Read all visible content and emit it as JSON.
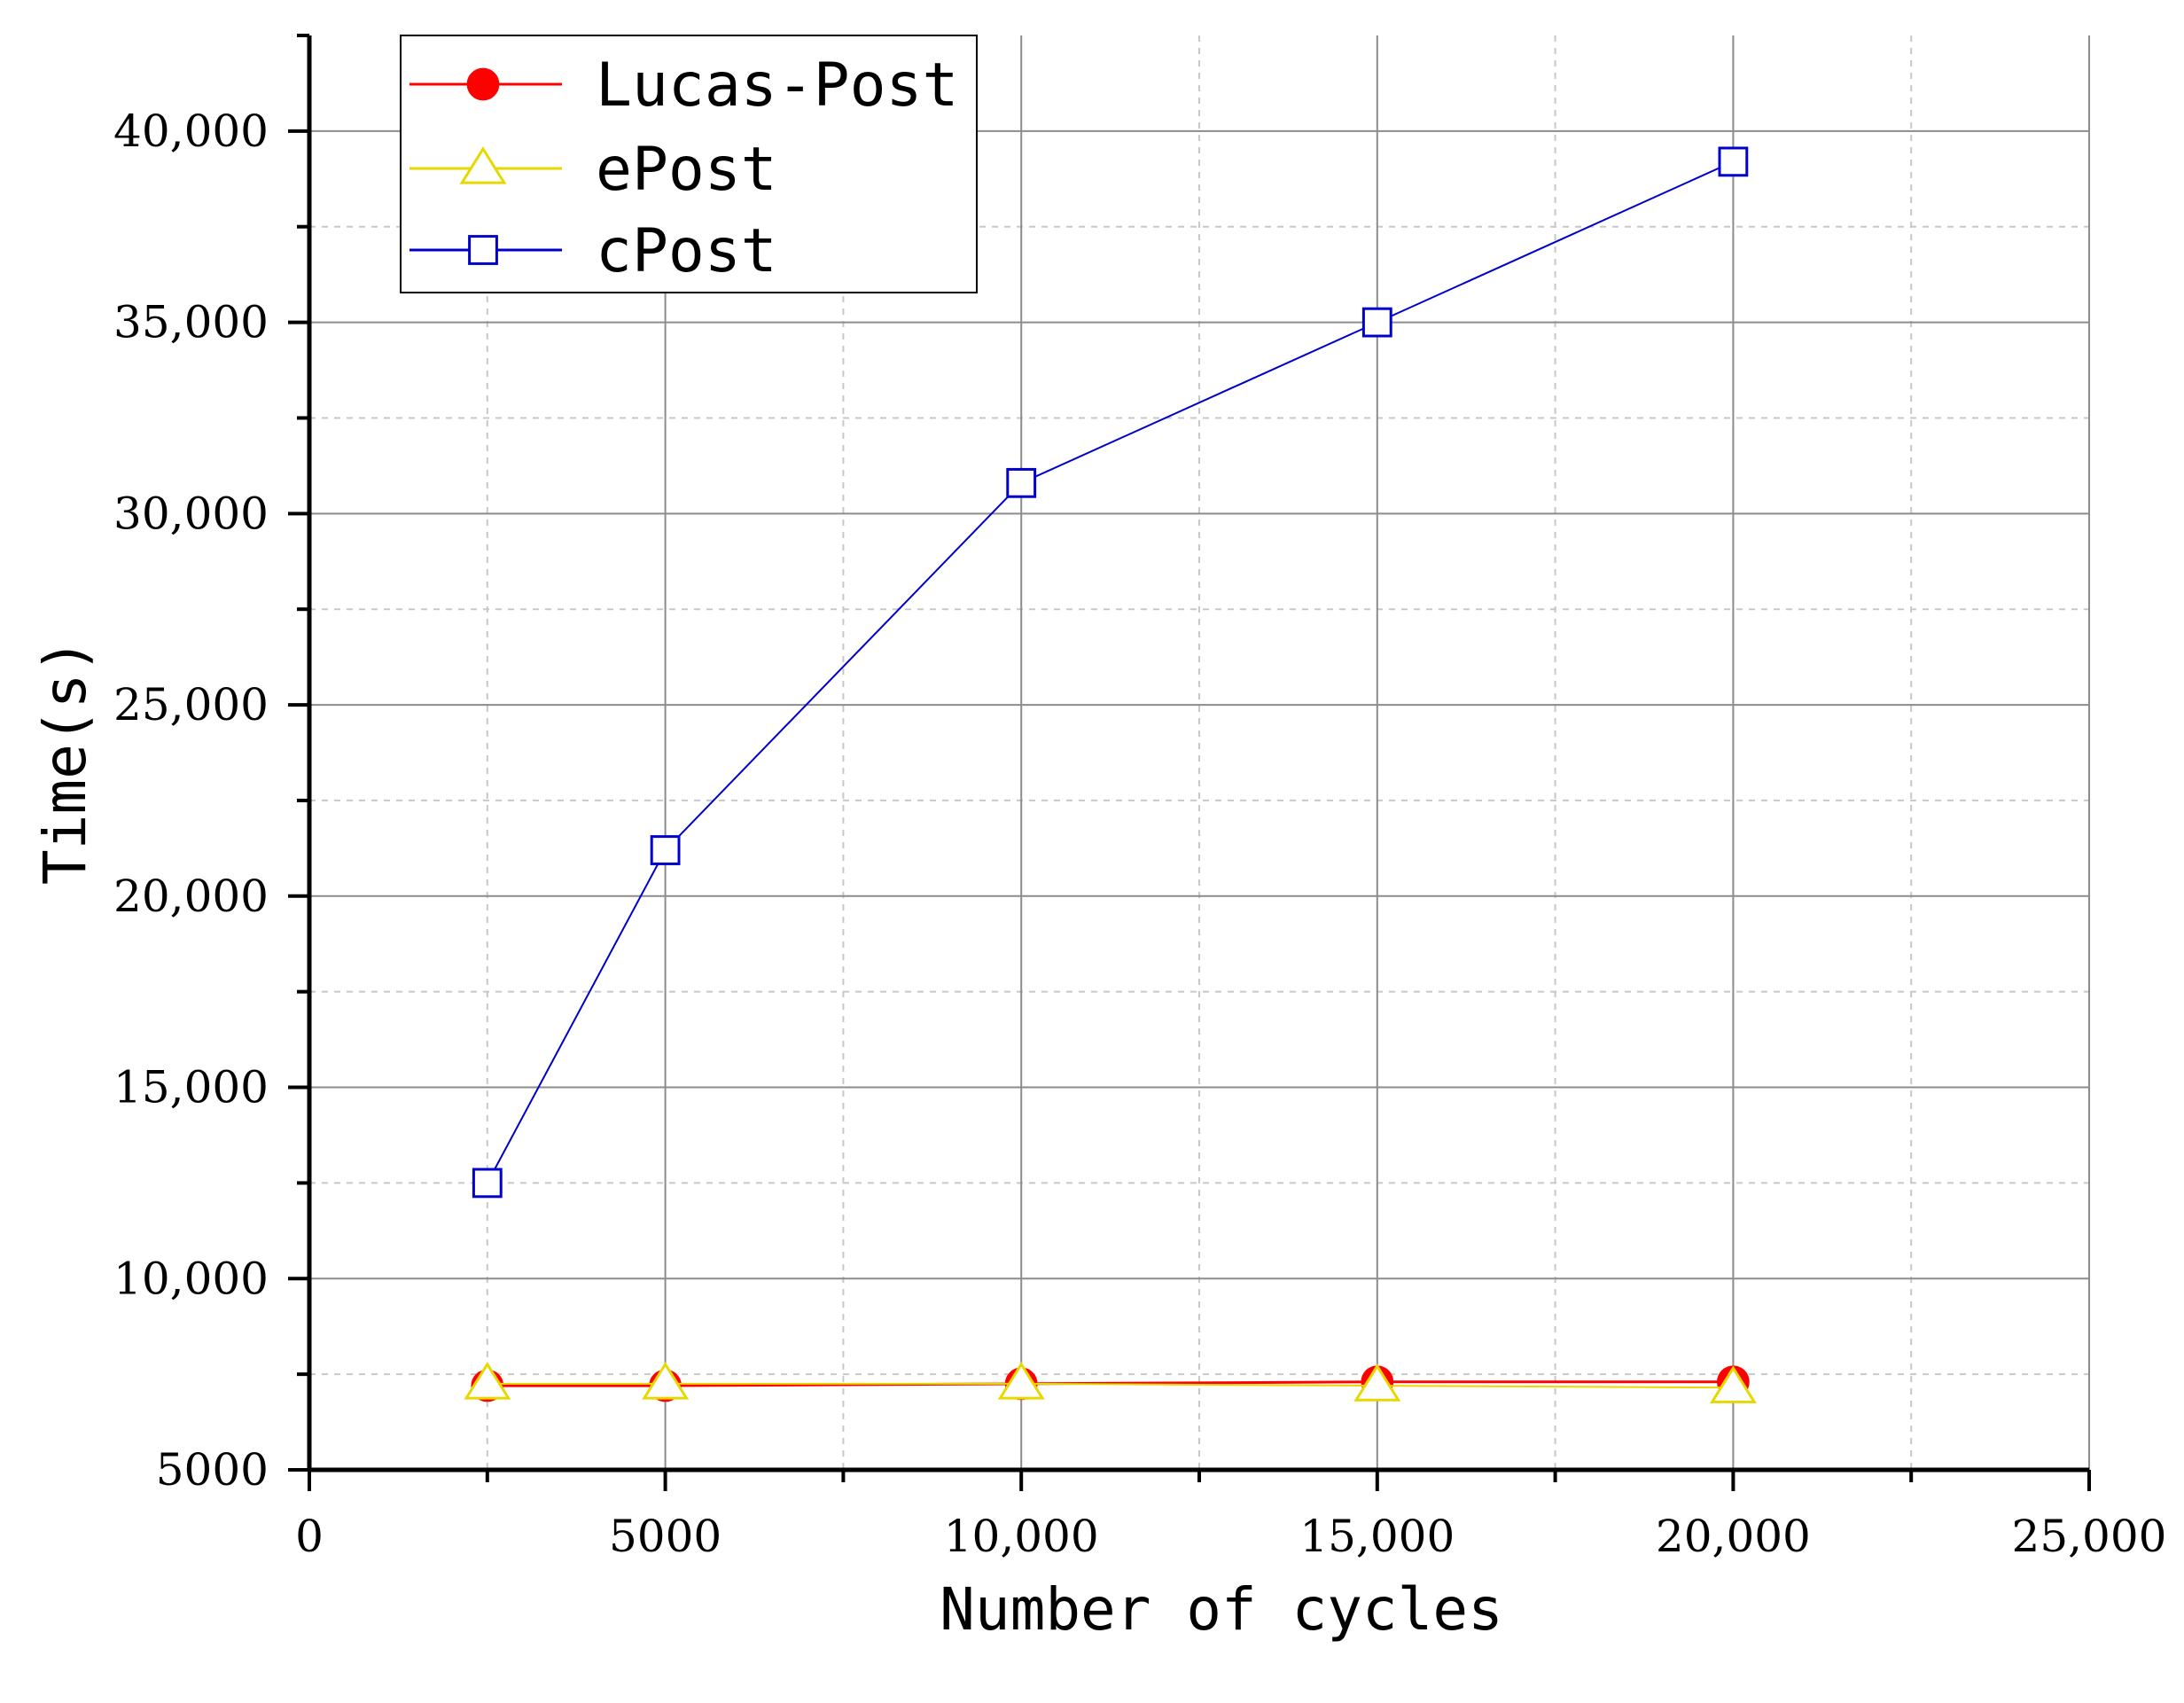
{
  "chart_data": {
    "type": "line",
    "title": "",
    "xlabel": "Number of cycles",
    "ylabel": "Time(s)",
    "xlim": [
      0,
      25000
    ],
    "ylim": [
      5000,
      42500
    ],
    "x_ticks": [
      0,
      5000,
      10000,
      15000,
      20000,
      25000
    ],
    "x_tick_labels": [
      "0",
      "5000",
      "10,000",
      "15,000",
      "20,000",
      "25,000"
    ],
    "y_ticks": [
      5000,
      10000,
      15000,
      20000,
      25000,
      30000,
      35000,
      40000
    ],
    "y_tick_labels": [
      "5000",
      "10,000",
      "15,000",
      "20,000",
      "25,000",
      "30,000",
      "35,000",
      "40,000"
    ],
    "x_minor_step": 2500,
    "y_minor_step": 2500,
    "grid": true,
    "legend_position": "top-left",
    "x": [
      2500,
      5000,
      10000,
      15000,
      20000
    ],
    "series": [
      {
        "name": "Lucas-Post",
        "marker": "filled-circle",
        "color": "#ff0000",
        "values": [
          7200,
          7200,
          7250,
          7300,
          7300
        ]
      },
      {
        "name": "ePost",
        "marker": "open-triangle",
        "color": "#e6d800",
        "values": [
          7250,
          7250,
          7250,
          7200,
          7150
        ]
      },
      {
        "name": "cPost",
        "marker": "open-square",
        "color": "#0000cc",
        "values": [
          12500,
          21200,
          30800,
          35000,
          39200
        ]
      }
    ]
  }
}
